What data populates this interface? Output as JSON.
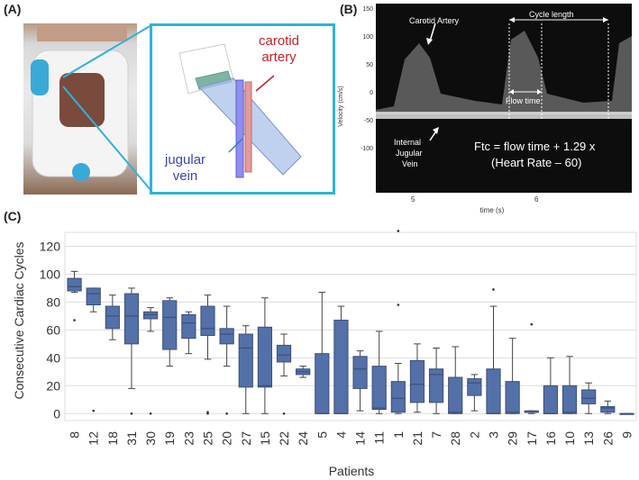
{
  "panels": {
    "a": "(A)",
    "b": "(B)",
    "c": "(C)"
  },
  "panelA": {
    "carotid_label_line1": "carotid",
    "carotid_label_line2": "artery",
    "jugular_label_line1": "jugular",
    "jugular_label_line2": "vein"
  },
  "panelB": {
    "carotid_artery": "Carotid Artery",
    "cycle_length": "Cycle length",
    "flow_time": "Flow time",
    "internal": "Internal",
    "jugular": "Jugular",
    "vein": "Vein",
    "formula_line1": "Ftc = flow time + 1.29 x",
    "formula_line2": "(Heart Rate – 60)",
    "ylabel": "Velocity (cm/s)",
    "xlabel": "time (s)",
    "yticks": [
      "150",
      "100",
      "50",
      "0",
      "-50",
      "-100"
    ],
    "xticks": [
      "5",
      "6"
    ],
    "colors": {
      "background": "#0d0d0d",
      "text": "#ffffff"
    }
  },
  "chart_data": {
    "type": "box",
    "title": "",
    "xlabel": "Patients",
    "ylabel": "Consecutive Cardiac Cycles",
    "ylim": [
      -5,
      130
    ],
    "yticks": [
      0,
      20,
      40,
      60,
      80,
      100,
      120
    ],
    "grid": true,
    "box_color": "#5470a8",
    "categories": [
      "8",
      "12",
      "18",
      "31",
      "30",
      "19",
      "23",
      "25",
      "20",
      "27",
      "15",
      "22",
      "24",
      "5",
      "4",
      "14",
      "11",
      "1",
      "21",
      "7",
      "28",
      "2",
      "3",
      "29",
      "17",
      "16",
      "10",
      "13",
      "26",
      "9"
    ],
    "boxes": [
      {
        "q1": 88,
        "median": 91,
        "q3": 97,
        "whisker_low": 87,
        "whisker_high": 102,
        "outliers": [
          67
        ]
      },
      {
        "q1": 78,
        "median": 86,
        "q3": 90,
        "whisker_low": 73,
        "whisker_high": 90,
        "outliers": [
          2
        ]
      },
      {
        "q1": 61,
        "median": 70,
        "q3": 77,
        "whisker_low": 53,
        "whisker_high": 85,
        "outliers": []
      },
      {
        "q1": 50,
        "median": 70,
        "q3": 86,
        "whisker_low": 18,
        "whisker_high": 90,
        "outliers": [
          0
        ]
      },
      {
        "q1": 68,
        "median": 71,
        "q3": 73,
        "whisker_low": 59,
        "whisker_high": 76,
        "outliers": [
          0
        ]
      },
      {
        "q1": 46,
        "median": 69,
        "q3": 81,
        "whisker_low": 34,
        "whisker_high": 83,
        "outliers": []
      },
      {
        "q1": 54,
        "median": 65,
        "q3": 71,
        "whisker_low": 43,
        "whisker_high": 73,
        "outliers": []
      },
      {
        "q1": 56,
        "median": 61,
        "q3": 77,
        "whisker_low": 39,
        "whisker_high": 85,
        "outliers": [
          0,
          1
        ]
      },
      {
        "q1": 50,
        "median": 57,
        "q3": 61,
        "whisker_low": 34,
        "whisker_high": 77,
        "outliers": [
          0
        ]
      },
      {
        "q1": 19,
        "median": 47,
        "q3": 57,
        "whisker_low": 0,
        "whisker_high": 63,
        "outliers": []
      },
      {
        "q1": 19,
        "median": 20,
        "q3": 62,
        "whisker_low": 0,
        "whisker_high": 83,
        "outliers": []
      },
      {
        "q1": 37,
        "median": 42,
        "q3": 49,
        "whisker_low": 27,
        "whisker_high": 57,
        "outliers": [
          0
        ]
      },
      {
        "q1": 28,
        "median": 30,
        "q3": 32,
        "whisker_low": 26,
        "whisker_high": 34,
        "outliers": []
      },
      {
        "q1": 0,
        "median": 0,
        "q3": 43,
        "whisker_low": 0,
        "whisker_high": 87,
        "outliers": []
      },
      {
        "q1": 0,
        "median": 0,
        "q3": 67,
        "whisker_low": 0,
        "whisker_high": 77,
        "outliers": []
      },
      {
        "q1": 18,
        "median": 32,
        "q3": 41,
        "whisker_low": 2,
        "whisker_high": 45,
        "outliers": []
      },
      {
        "q1": 3,
        "median": 4,
        "q3": 34,
        "whisker_low": 0,
        "whisker_high": 59,
        "outliers": []
      },
      {
        "q1": 1,
        "median": 11,
        "q3": 23,
        "whisker_low": 0,
        "whisker_high": 36,
        "outliers": [
          78,
          131
        ]
      },
      {
        "q1": 8,
        "median": 21,
        "q3": 38,
        "whisker_low": 1,
        "whisker_high": 50,
        "outliers": []
      },
      {
        "q1": 8,
        "median": 28,
        "q3": 32,
        "whisker_low": 0,
        "whisker_high": 47,
        "outliers": []
      },
      {
        "q1": 0,
        "median": 1,
        "q3": 26,
        "whisker_low": 0,
        "whisker_high": 48,
        "outliers": []
      },
      {
        "q1": 13,
        "median": 22,
        "q3": 25,
        "whisker_low": 2,
        "whisker_high": 28,
        "outliers": []
      },
      {
        "q1": 0,
        "median": 0,
        "q3": 32,
        "whisker_low": 0,
        "whisker_high": 77,
        "outliers": [
          89
        ]
      },
      {
        "q1": 0,
        "median": 1,
        "q3": 23,
        "whisker_low": 0,
        "whisker_high": 54,
        "outliers": []
      },
      {
        "q1": 1,
        "median": 1,
        "q3": 2,
        "whisker_low": 0,
        "whisker_high": 2,
        "outliers": [
          64
        ]
      },
      {
        "q1": 0,
        "median": 0,
        "q3": 20,
        "whisker_low": 0,
        "whisker_high": 40,
        "outliers": []
      },
      {
        "q1": 0,
        "median": 1,
        "q3": 20,
        "whisker_low": 0,
        "whisker_high": 41,
        "outliers": []
      },
      {
        "q1": 7,
        "median": 11,
        "q3": 17,
        "whisker_low": 0,
        "whisker_high": 22,
        "outliers": []
      },
      {
        "q1": 1,
        "median": 4,
        "q3": 5,
        "whisker_low": 0,
        "whisker_high": 9,
        "outliers": []
      },
      {
        "q1": 0,
        "median": 0,
        "q3": 0,
        "whisker_low": 0,
        "whisker_high": 0,
        "outliers": []
      }
    ]
  }
}
